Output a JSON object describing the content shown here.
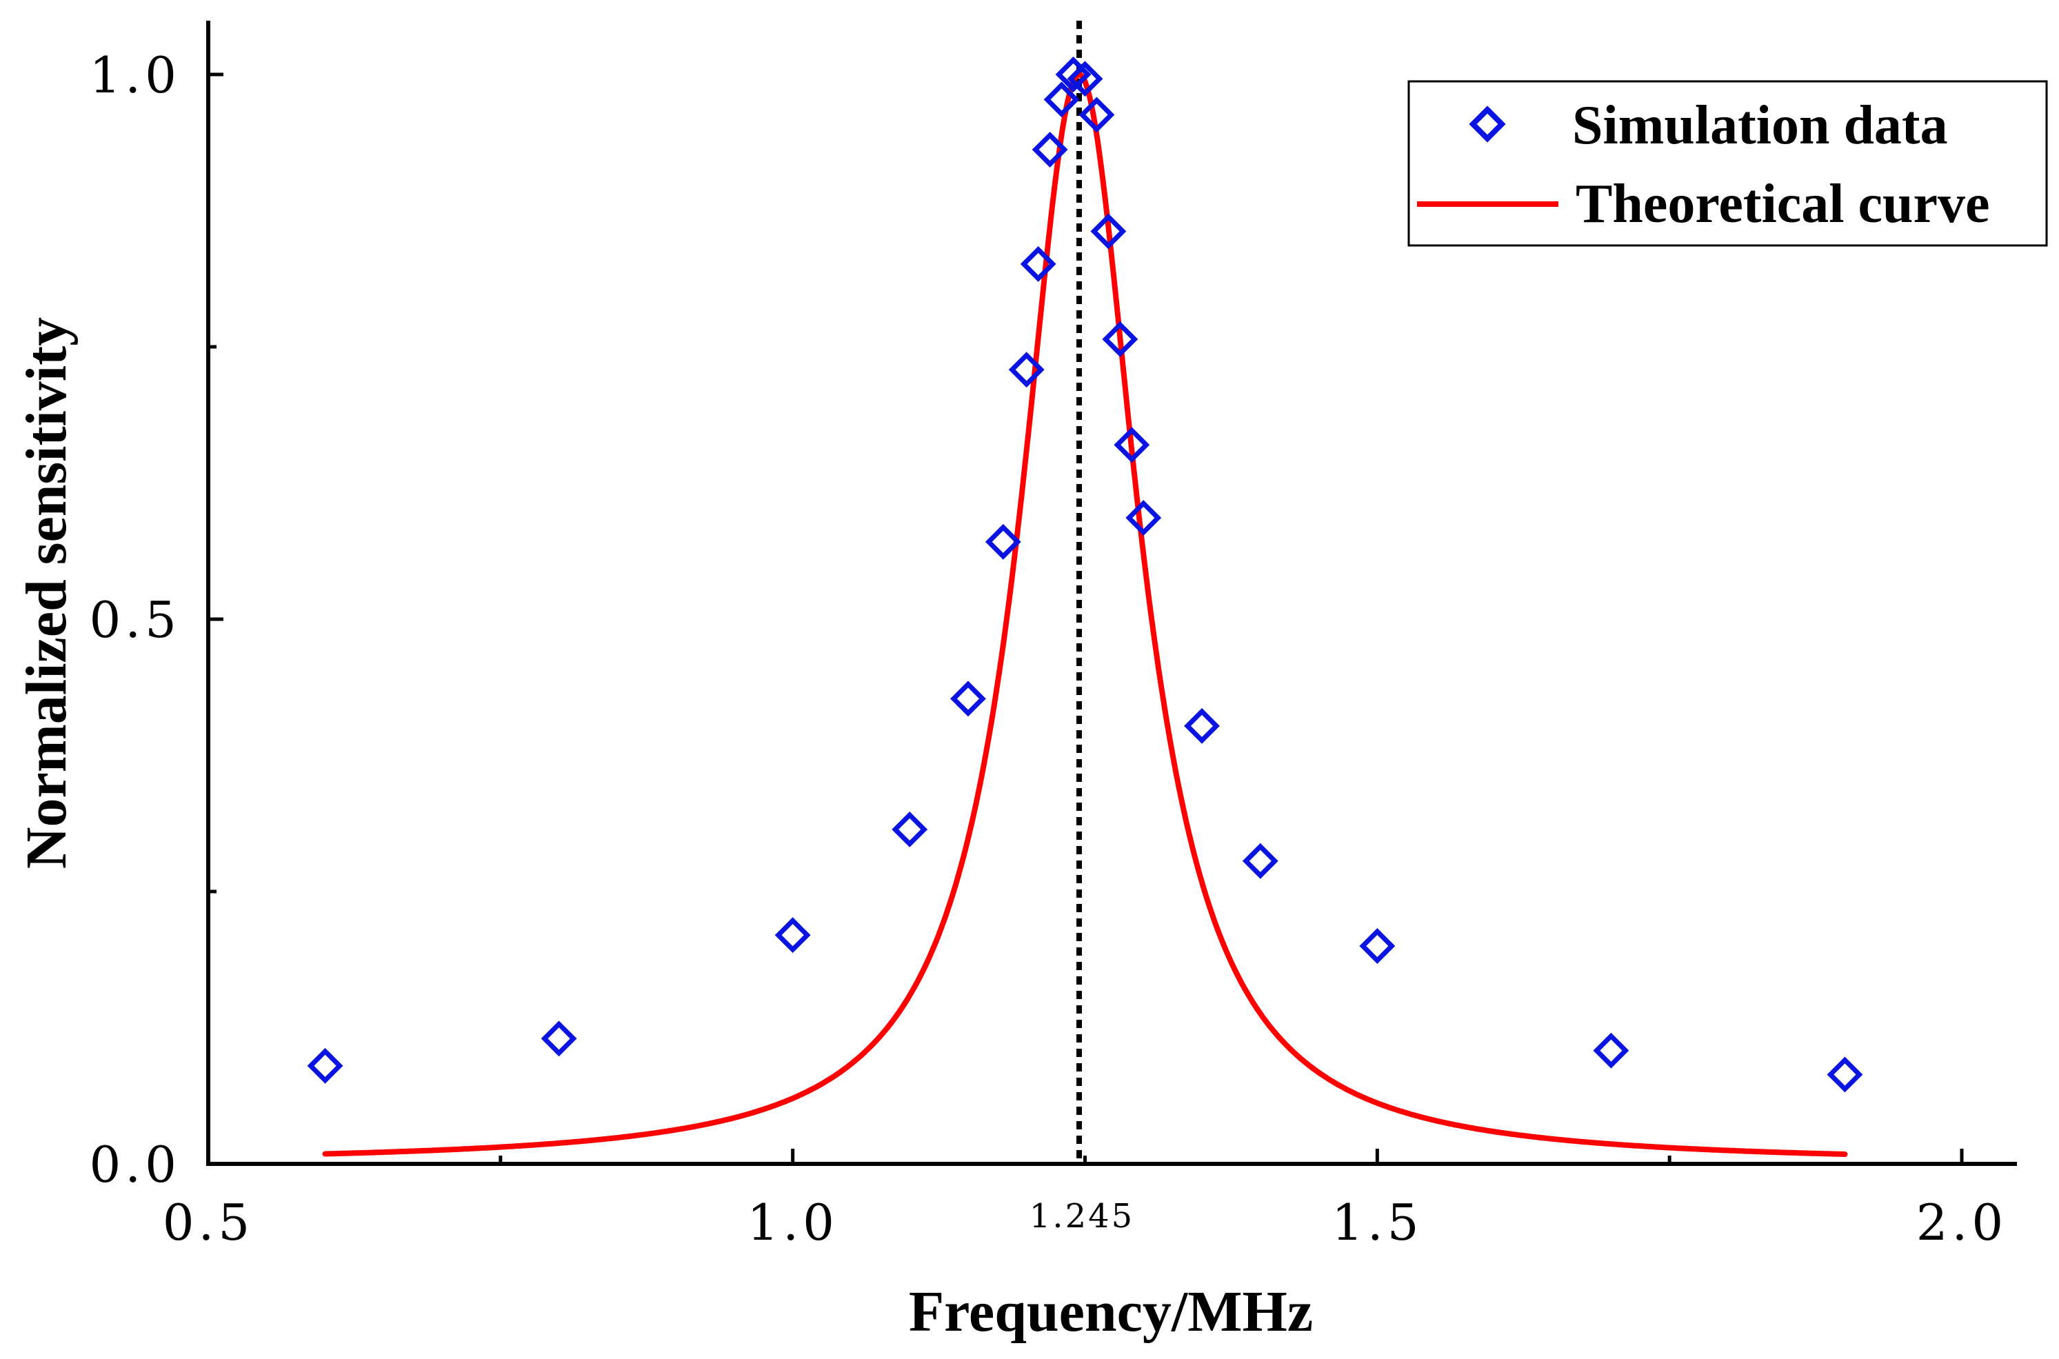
{
  "chart_data": {
    "type": "scatter+line",
    "xlabel": "Frequency/MHz",
    "ylabel": "Normalized sensitivity",
    "xlim": [
      0.5,
      2.05
    ],
    "ylim": [
      0.0,
      1.05
    ],
    "x_ticks": [
      {
        "value": 0.5,
        "label": "0.5"
      },
      {
        "value": 1.0,
        "label": "1.0"
      },
      {
        "value": 1.5,
        "label": "1.5"
      },
      {
        "value": 2.0,
        "label": "2.0"
      }
    ],
    "x_minor_ticks": [
      0.75,
      1.25,
      1.75
    ],
    "y_ticks": [
      {
        "value": 0.0,
        "label": "0.0"
      },
      {
        "value": 0.5,
        "label": "0.5"
      },
      {
        "value": 1.0,
        "label": "1.0"
      }
    ],
    "y_minor_ticks": [
      0.25,
      0.75
    ],
    "reference_line": {
      "x": 1.245,
      "label": "1.245",
      "style": "dotted",
      "color": "#000000"
    },
    "series": [
      {
        "name": "Simulation data",
        "kind": "scatter",
        "marker": "diamond",
        "color": "#0a14e0",
        "x": [
          0.6,
          0.8,
          1.0,
          1.1,
          1.15,
          1.18,
          1.2,
          1.21,
          1.22,
          1.23,
          1.24,
          1.25,
          1.26,
          1.27,
          1.28,
          1.29,
          1.3,
          1.35,
          1.4,
          1.5,
          1.7,
          1.9
        ],
        "y": [
          0.09,
          0.115,
          0.21,
          0.307,
          0.427,
          0.571,
          0.729,
          0.826,
          0.931,
          0.977,
          1.0,
          0.996,
          0.963,
          0.856,
          0.757,
          0.66,
          0.593,
          0.402,
          0.278,
          0.2,
          0.104,
          0.082
        ]
      },
      {
        "name": "Theoretical curve",
        "kind": "line",
        "color": "#ff0000",
        "model": "lorentzian",
        "center": 1.245,
        "hwhm": 0.062,
        "peak": 1.0,
        "x_range": [
          0.6,
          1.9
        ]
      }
    ],
    "legend": {
      "position": "top-right",
      "entries": [
        "Simulation data",
        "Theoretical curve"
      ]
    }
  }
}
